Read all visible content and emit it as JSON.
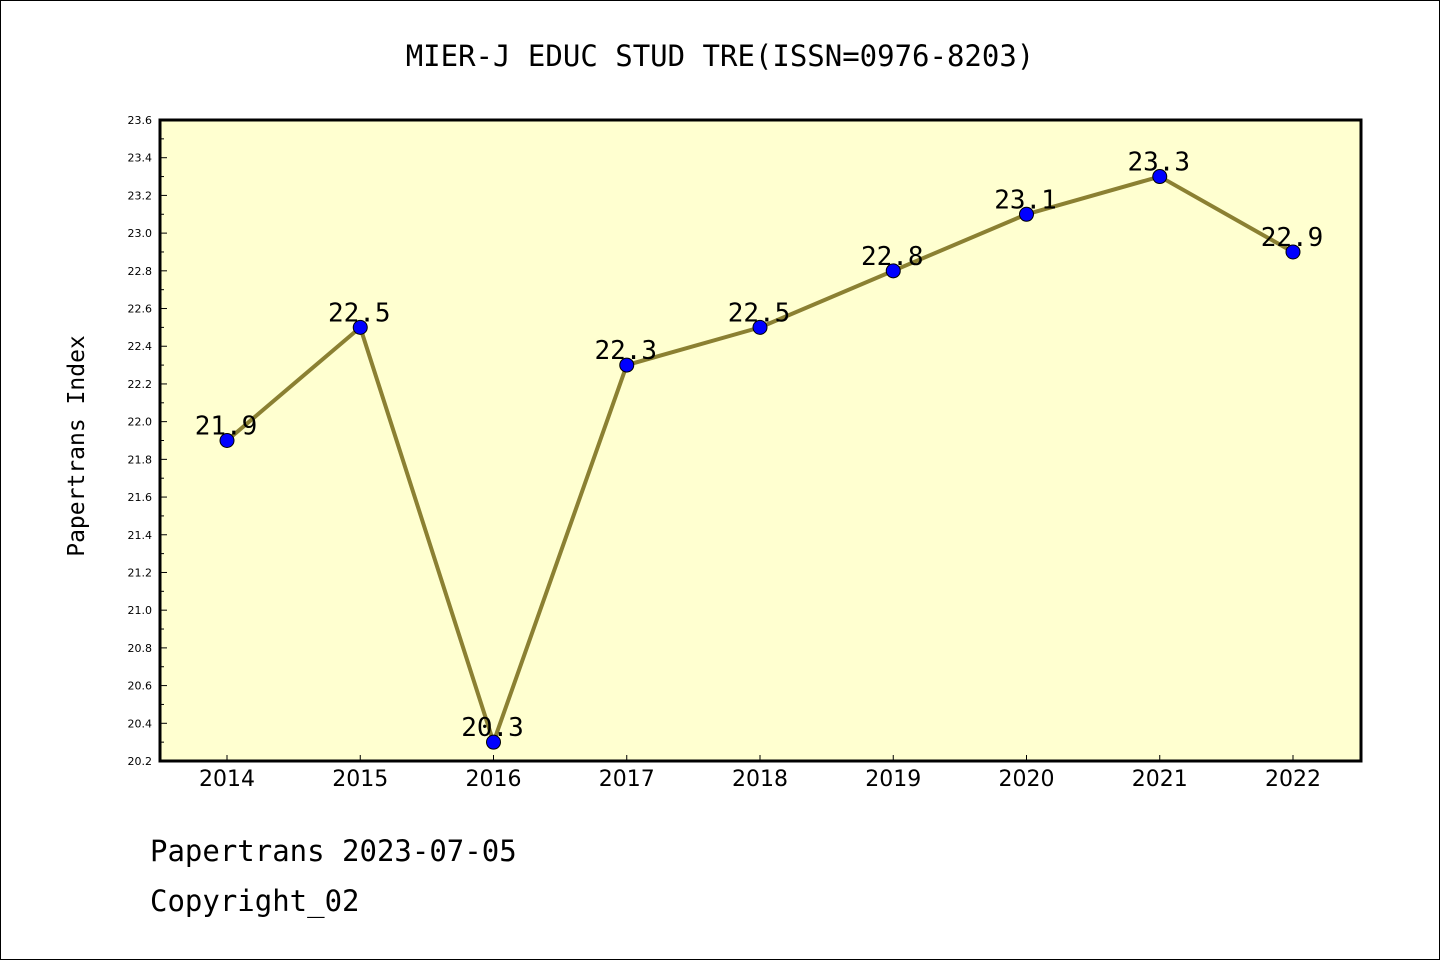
{
  "chart_data": {
    "type": "line",
    "title": "MIER-J EDUC STUD TRE(ISSN=0976-8203)",
    "xlabel": "",
    "ylabel": "Papertrans Index",
    "categories": [
      "2014",
      "2015",
      "2016",
      "2017",
      "2018",
      "2019",
      "2020",
      "2021",
      "2022"
    ],
    "series": [
      {
        "values": [
          21.9,
          22.5,
          20.3,
          22.3,
          22.5,
          22.8,
          23.1,
          23.3,
          22.9
        ]
      }
    ],
    "data_labels": [
      "21.9",
      "22.5",
      "20.3",
      "22.3",
      "22.5",
      "22.8",
      "23.1",
      "23.3",
      "22.9"
    ],
    "ylim": [
      20.2,
      23.6
    ],
    "yticks": [
      "20.2",
      "20.4",
      "20.6",
      "20.8",
      "21.0",
      "21.2",
      "21.4",
      "21.6",
      "21.8",
      "22.0",
      "22.2",
      "22.4",
      "22.6",
      "22.8",
      "23.0",
      "23.2",
      "23.4",
      "23.6"
    ],
    "grid": false,
    "colors": {
      "plot_background": "#ffffd0",
      "line": "#8b8032",
      "marker": "#0000ff"
    }
  },
  "footer": {
    "line1": "Papertrans 2023-07-05",
    "line2": "Copyright_02"
  }
}
